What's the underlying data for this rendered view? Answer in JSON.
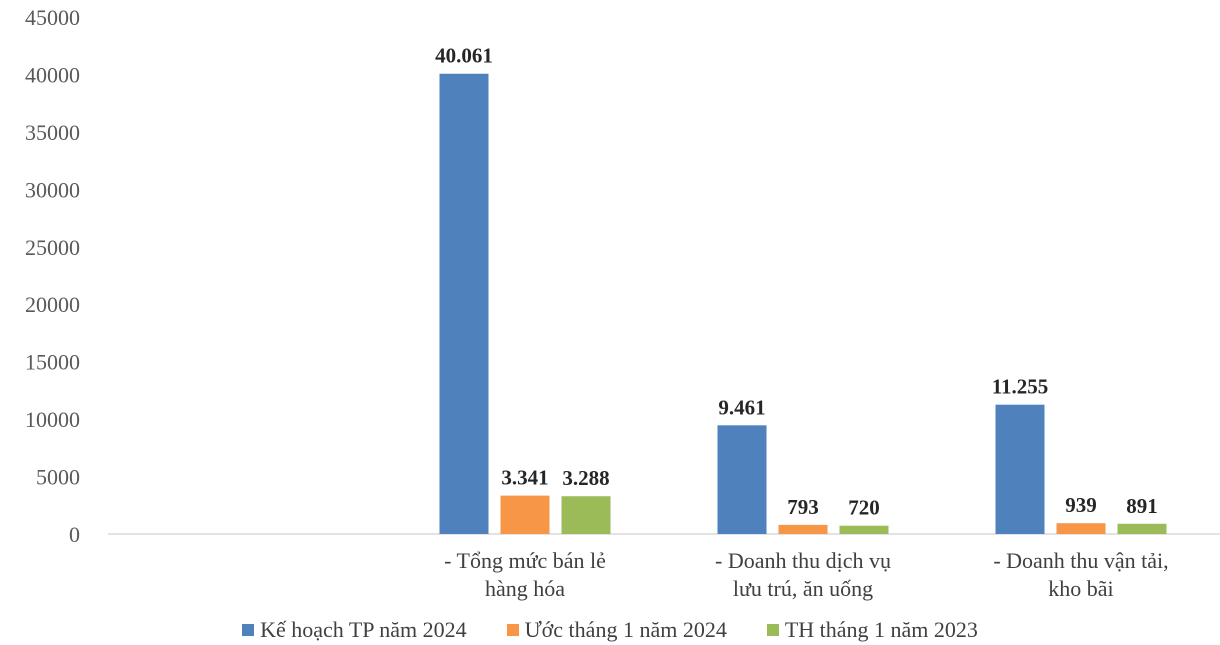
{
  "chart_data": {
    "type": "bar",
    "categories": [
      [
        "- Tổng mức bán lẻ",
        "hàng hóa"
      ],
      [
        "- Doanh thu dịch vụ",
        "lưu trú, ăn uống"
      ],
      [
        "- Doanh thu vận tải,",
        "kho bãi"
      ]
    ],
    "series": [
      {
        "name": "Kế hoạch TP năm 2024",
        "color": "#4F81BD",
        "values": [
          40061,
          9461,
          11255
        ],
        "labels": [
          "40.061",
          "9.461",
          "11.255"
        ]
      },
      {
        "name": "Ước tháng 1 năm 2024",
        "color": "#F79646",
        "values": [
          3341,
          793,
          939
        ],
        "labels": [
          "3.341",
          "793",
          "939"
        ]
      },
      {
        "name": "TH tháng 1 năm 2023",
        "color": "#9BBB59",
        "values": [
          3288,
          720,
          891
        ],
        "labels": [
          "3.288",
          "720",
          "891"
        ]
      }
    ],
    "y_ticks": [
      "0",
      "5000",
      "10000",
      "15000",
      "20000",
      "25000",
      "30000",
      "35000",
      "40000",
      "45000"
    ],
    "ylim": [
      0,
      45000
    ],
    "grid": false,
    "legend_position": "bottom"
  }
}
